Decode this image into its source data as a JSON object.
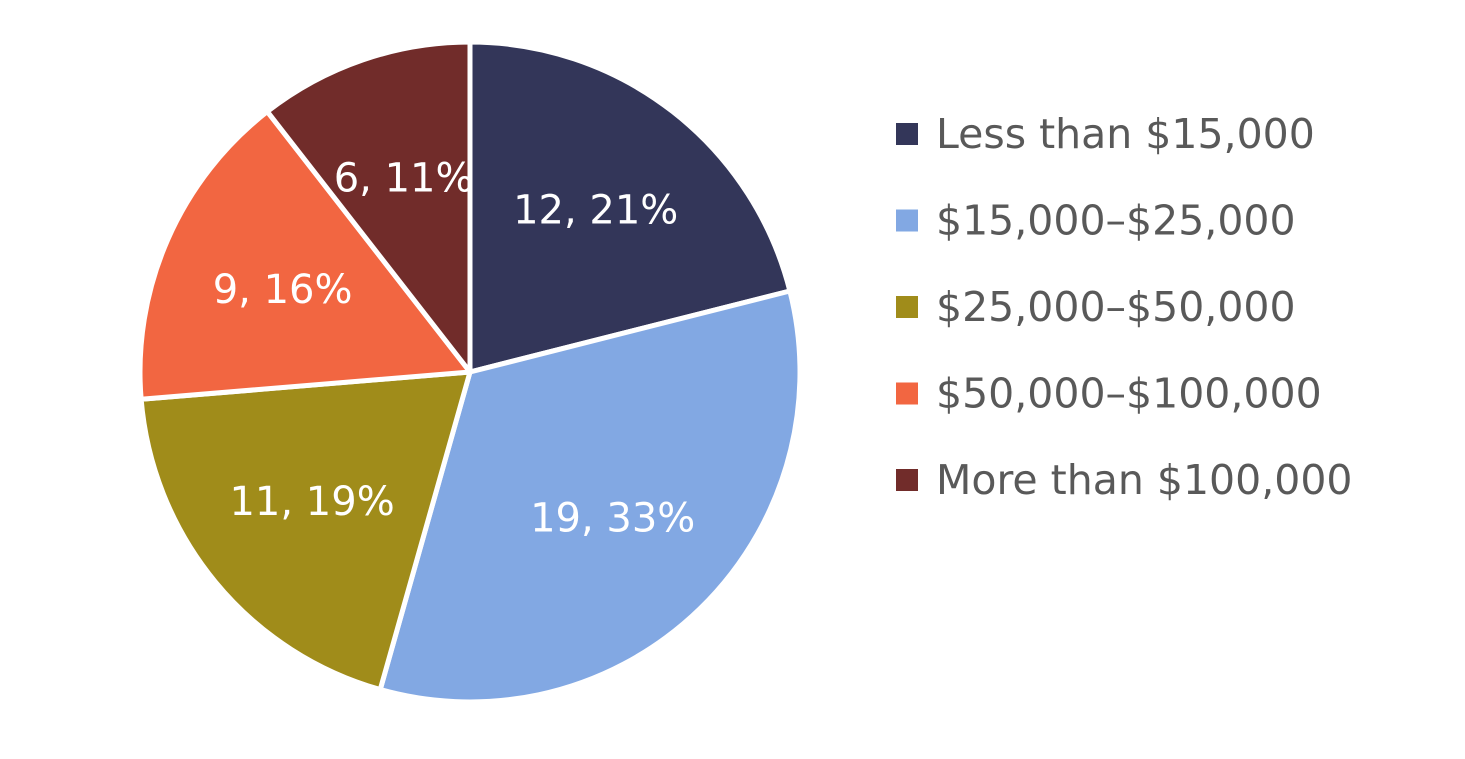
{
  "chart_data": {
    "type": "pie",
    "title": "",
    "categories": [
      "Less than $15,000",
      "$15,000–$25,000",
      "$25,000–$50,000",
      "$50,000–$100,000",
      "More than $100,000"
    ],
    "values": [
      12,
      19,
      11,
      9,
      6
    ],
    "percent_labels": [
      "21%",
      "33%",
      "19%",
      "16%",
      "11%"
    ],
    "data_labels": [
      "12, 21%",
      "19, 33%",
      "11, 19%",
      "9, 16%",
      "6, 11%"
    ],
    "colors": [
      "#333659",
      "#82a8e3",
      "#a08c1a",
      "#f26641",
      "#712c2a"
    ],
    "legend_position": "right",
    "start_angle": "12 o'clock",
    "direction": "clockwise"
  }
}
